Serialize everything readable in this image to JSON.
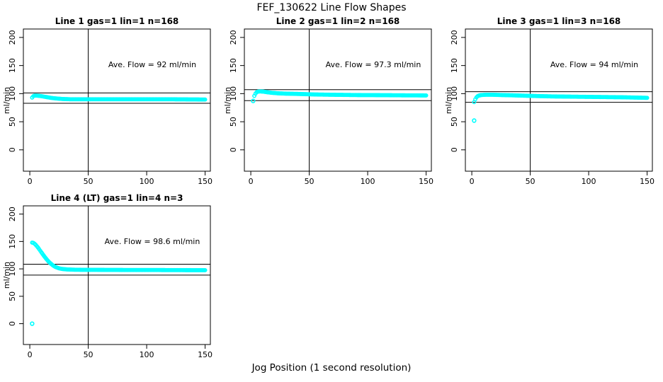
{
  "page": {
    "title": "FEF_130622  Line Flow Shapes",
    "xlabel": "Jog Position (1 second resolution)"
  },
  "colors": {
    "point": "#00ffff",
    "axis": "#000000",
    "background": "#ffffff"
  },
  "chart_data": [
    {
      "type": "scatter",
      "title": "Line 1 gas=1 lin=1 n=168",
      "annotation": "Ave. Flow =  92  ml/min",
      "ave_flow_ml_min": 92,
      "ylabel": "ml/min",
      "xlim": [
        -5.5,
        154.5
      ],
      "ylim": [
        -38,
        215
      ],
      "xticks": [
        0,
        50,
        100,
        150
      ],
      "yticks": [
        0,
        50,
        100,
        150,
        200
      ],
      "vline_x": 50,
      "hlines": [
        101.2,
        82.8
      ],
      "points_curve": [
        [
          2,
          93
        ],
        [
          3,
          95.5
        ],
        [
          4,
          96.5
        ],
        [
          6,
          96.5
        ],
        [
          8,
          96
        ],
        [
          10,
          95.5
        ],
        [
          14,
          94
        ],
        [
          18,
          92.5
        ],
        [
          22,
          91.5
        ],
        [
          28,
          90.5
        ],
        [
          35,
          90
        ],
        [
          60,
          90
        ],
        [
          90,
          90
        ],
        [
          120,
          90
        ],
        [
          150,
          89.5
        ]
      ],
      "outlier_points": []
    },
    {
      "type": "scatter",
      "title": "Line 2 gas=1 lin=2 n=168",
      "annotation": "Ave. Flow =  97.3  ml/min",
      "ave_flow_ml_min": 97.3,
      "ylabel": "ml/min",
      "xlim": [
        -5.5,
        154.5
      ],
      "ylim": [
        -38,
        215
      ],
      "xticks": [
        0,
        50,
        100,
        150
      ],
      "yticks": [
        0,
        50,
        100,
        150,
        200
      ],
      "vline_x": 50,
      "hlines": [
        107.0,
        87.6
      ],
      "points_curve": [
        [
          3,
          96
        ],
        [
          4,
          100
        ],
        [
          5,
          102.5
        ],
        [
          6,
          103.5
        ],
        [
          8,
          104
        ],
        [
          11,
          103.5
        ],
        [
          14,
          102.5
        ],
        [
          18,
          101.5
        ],
        [
          24,
          100.5
        ],
        [
          30,
          100
        ],
        [
          40,
          99.5
        ],
        [
          55,
          98.5
        ],
        [
          70,
          98
        ],
        [
          90,
          97.5
        ],
        [
          110,
          97.3
        ],
        [
          130,
          97
        ],
        [
          150,
          96.8
        ]
      ],
      "outlier_points": [
        [
          2,
          87
        ]
      ]
    },
    {
      "type": "scatter",
      "title": "Line 3 gas=1 lin=3 n=168",
      "annotation": "Ave. Flow =  94  ml/min",
      "ave_flow_ml_min": 94,
      "ylabel": "ml/min",
      "xlim": [
        -5.5,
        154.5
      ],
      "ylim": [
        -38,
        215
      ],
      "xticks": [
        0,
        50,
        100,
        150
      ],
      "yticks": [
        0,
        50,
        100,
        150,
        200
      ],
      "vline_x": 50,
      "hlines": [
        103.4,
        84.6
      ],
      "points_curve": [
        [
          2,
          85
        ],
        [
          3,
          90
        ],
        [
          4,
          93.5
        ],
        [
          5,
          95.5
        ],
        [
          6,
          96.5
        ],
        [
          8,
          97.5
        ],
        [
          12,
          98
        ],
        [
          18,
          98
        ],
        [
          25,
          97.5
        ],
        [
          35,
          97
        ],
        [
          50,
          96
        ],
        [
          70,
          95
        ],
        [
          90,
          94.5
        ],
        [
          110,
          94
        ],
        [
          130,
          93.5
        ],
        [
          150,
          92.5
        ]
      ],
      "outlier_points": [
        [
          2,
          52
        ]
      ]
    },
    {
      "type": "scatter",
      "title": "Line 4 (LT) gas=1 lin=4 n=3",
      "annotation": "Ave. Flow =  98.6  ml/min",
      "ave_flow_ml_min": 98.6,
      "ylabel": "ml/min",
      "xlim": [
        -5.5,
        154.5
      ],
      "ylim": [
        -38,
        215
      ],
      "xticks": [
        0,
        50,
        100,
        150
      ],
      "yticks": [
        0,
        50,
        100,
        150,
        200
      ],
      "vline_x": 50,
      "hlines": [
        108.5,
        88.7
      ],
      "points_curve": [
        [
          2,
          148
        ],
        [
          3,
          147.5
        ],
        [
          4,
          146
        ],
        [
          5,
          144
        ],
        [
          6,
          141.5
        ],
        [
          7,
          139
        ],
        [
          8,
          136
        ],
        [
          9,
          133
        ],
        [
          10,
          130
        ],
        [
          12,
          124
        ],
        [
          14,
          118.5
        ],
        [
          16,
          113.5
        ],
        [
          18,
          109.5
        ],
        [
          20,
          106
        ],
        [
          22,
          103.5
        ],
        [
          25,
          101
        ],
        [
          28,
          99.8
        ],
        [
          32,
          99
        ],
        [
          38,
          98.5
        ],
        [
          45,
          98.3
        ],
        [
          60,
          98.2
        ],
        [
          80,
          98
        ],
        [
          100,
          98
        ],
        [
          120,
          97.8
        ],
        [
          150,
          97.6
        ]
      ],
      "outlier_points": [
        [
          2,
          0
        ]
      ]
    }
  ]
}
